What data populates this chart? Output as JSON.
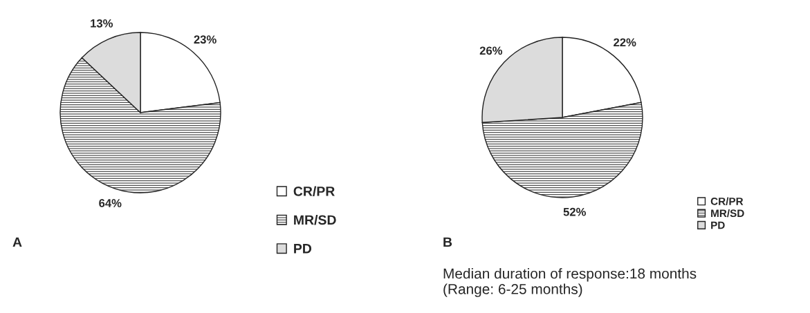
{
  "chart_data": [
    {
      "type": "pie",
      "title": "A",
      "categories": [
        "CR/PR",
        "MR/SD",
        "PD"
      ],
      "values": [
        23,
        64,
        13
      ],
      "colors": [
        "#ffffff",
        "#222222",
        "#dcdcdc"
      ],
      "value_labels": [
        "23%",
        "64%",
        "13%"
      ],
      "legend": "right"
    },
    {
      "type": "pie",
      "title": "B",
      "categories": [
        "CR/PR",
        "MR/SD",
        "PD"
      ],
      "values": [
        22,
        52,
        26
      ],
      "colors": [
        "#ffffff",
        "#222222",
        "#dcdcdc"
      ],
      "value_labels": [
        "22%",
        "52%",
        "26%"
      ],
      "legend": "right",
      "annotations": [
        "Median duration of response:18 months\n(Range: 6-25 months)"
      ]
    }
  ]
}
